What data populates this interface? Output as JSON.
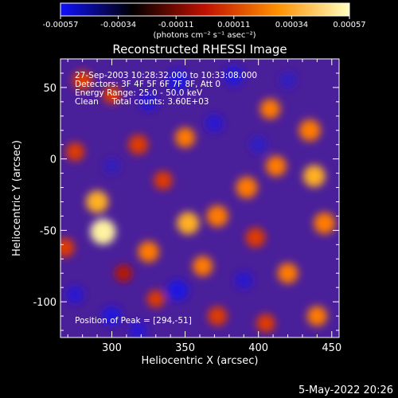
{
  "chart_data": {
    "type": "heatmap",
    "title": "Reconstructed RHESSI Image",
    "xlabel": "Heliocentric X (arcsec)",
    "ylabel": "Heliocentric Y (arcsec)",
    "xlim": [
      265,
      455
    ],
    "ylim": [
      -125,
      70
    ],
    "xticks": [
      300,
      350,
      400,
      450
    ],
    "yticks": [
      -100,
      -50,
      0,
      50
    ],
    "colorbar": {
      "label": "(photons cm⁻² s⁻¹ asec⁻²)",
      "range": [
        -0.00057,
        0.00057
      ],
      "ticks": [
        "-0.00057",
        "-0.00034",
        "-0.00011",
        "0.00011",
        "0.00034",
        "0.00057"
      ],
      "colors": [
        "#1010ff",
        "#000000",
        "#c01000",
        "#ff9000",
        "#ffffc0"
      ]
    },
    "annotations": [
      "27-Sep-2003 10:28:32.000 to 10:33:08.000",
      "Detectors: 3F 4F 5F 6F 7F 8F, Att 0",
      "Energy Range: 25.0 - 50.0 keV",
      "Clean     Total counts: 3.60E+03"
    ],
    "peak_label": "Position of Peak = [294,-51]",
    "peak_position": [
      294,
      -51
    ],
    "bright_regions": [
      {
        "x": 294,
        "y": -51,
        "value": 0.00057
      },
      {
        "x": 290,
        "y": -30,
        "value": 0.00045
      },
      {
        "x": 325,
        "y": -65,
        "value": 0.0004
      },
      {
        "x": 352,
        "y": -45,
        "value": 0.00045
      },
      {
        "x": 372,
        "y": -40,
        "value": 0.00042
      },
      {
        "x": 362,
        "y": -75,
        "value": 0.00036
      },
      {
        "x": 392,
        "y": -20,
        "value": 0.00042
      },
      {
        "x": 412,
        "y": -5,
        "value": 0.00038
      },
      {
        "x": 438,
        "y": -12,
        "value": 0.00044
      },
      {
        "x": 445,
        "y": -45,
        "value": 0.00042
      },
      {
        "x": 435,
        "y": 20,
        "value": 0.00042
      },
      {
        "x": 408,
        "y": 35,
        "value": 0.00036
      },
      {
        "x": 350,
        "y": 15,
        "value": 0.00036
      },
      {
        "x": 318,
        "y": 10,
        "value": 0.00034
      },
      {
        "x": 275,
        "y": 5,
        "value": 0.0003
      },
      {
        "x": 280,
        "y": 55,
        "value": 0.00034
      },
      {
        "x": 300,
        "y": 45,
        "value": 0.00028
      },
      {
        "x": 420,
        "y": -80,
        "value": 0.00038
      },
      {
        "x": 440,
        "y": -110,
        "value": 0.00036
      },
      {
        "x": 405,
        "y": -115,
        "value": 0.0003
      },
      {
        "x": 372,
        "y": -110,
        "value": 0.00032
      },
      {
        "x": 330,
        "y": -98,
        "value": 0.00026
      },
      {
        "x": 308,
        "y": -80,
        "value": 0.00024
      },
      {
        "x": 398,
        "y": -55,
        "value": 0.00034
      },
      {
        "x": 335,
        "y": -15,
        "value": 0.0003
      },
      {
        "x": 268,
        "y": -62,
        "value": 0.00032
      }
    ],
    "dim_regions": [
      {
        "x": 345,
        "y": 55,
        "value": -0.0004
      },
      {
        "x": 383,
        "y": 58,
        "value": -0.00036
      },
      {
        "x": 325,
        "y": 40,
        "value": -0.00032
      },
      {
        "x": 370,
        "y": 25,
        "value": -0.0003
      },
      {
        "x": 300,
        "y": -110,
        "value": -0.00036
      },
      {
        "x": 345,
        "y": -92,
        "value": -0.0004
      },
      {
        "x": 318,
        "y": -120,
        "value": -0.0003
      },
      {
        "x": 275,
        "y": -95,
        "value": -0.0003
      },
      {
        "x": 390,
        "y": -85,
        "value": -0.00028
      },
      {
        "x": 400,
        "y": 10,
        "value": -0.00024
      },
      {
        "x": 300,
        "y": -5,
        "value": -0.0002
      },
      {
        "x": 420,
        "y": 55,
        "value": -0.00022
      }
    ]
  },
  "footer_date": "5-May-2022 20:26"
}
